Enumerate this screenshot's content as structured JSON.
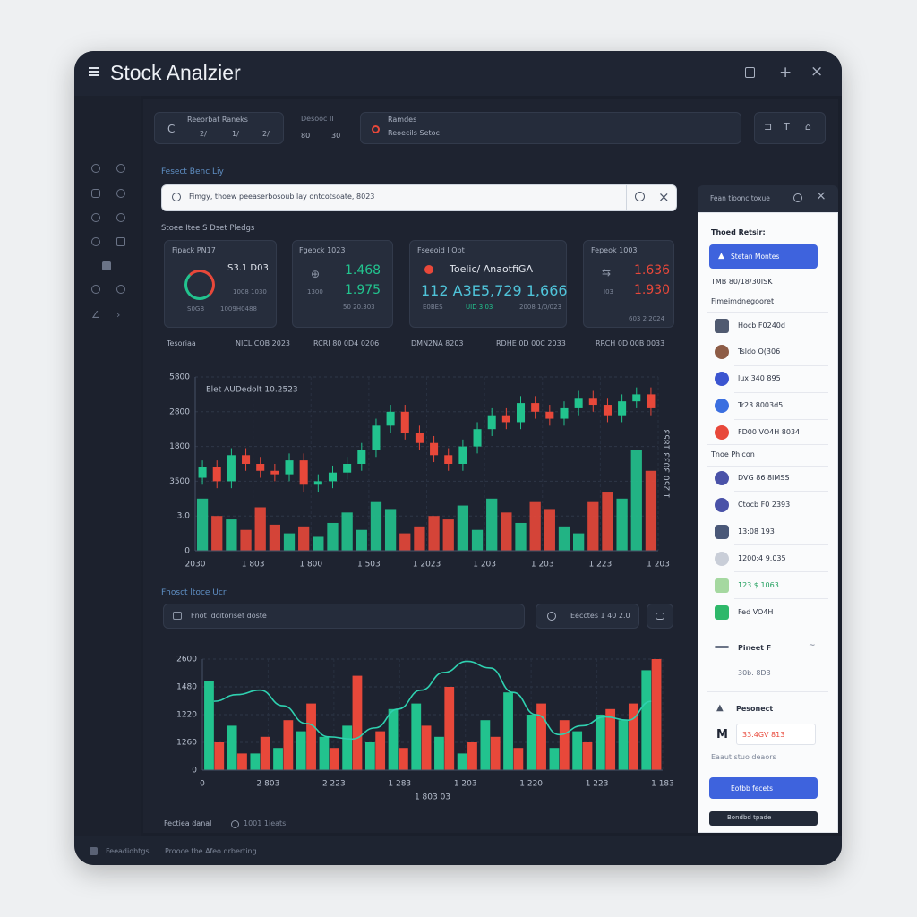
{
  "window": {
    "title": "Stock Analzier"
  },
  "toolbar": {
    "range": {
      "label": "Reeorbat Raneks",
      "parts": [
        "2/",
        "1/",
        "2/"
      ]
    },
    "period": {
      "label": "Desooc II",
      "parts": [
        "80",
        "30"
      ]
    },
    "source": {
      "label": "Ramdes",
      "value": "Reoecils Setoc"
    }
  },
  "section_label": "Fesect Benc Liy",
  "search": {
    "placeholder": "Fimgy, thoew peeaserbosoub lay ontcotsoate, 8023"
  },
  "stats_heading": "Stoee Itee S Dset Pledgs",
  "cards": [
    {
      "title": "Fipack PN17",
      "value": "S3.1 D03",
      "sub": "1008 1030",
      "foot_left": "S0GB",
      "foot_right": "1009H0488"
    },
    {
      "title": "Fgeock 1023",
      "value_a": "1.468",
      "value_b": "1.975",
      "sub": "1300",
      "foot_right": "50 20.303"
    },
    {
      "title": "Fseeoid I Obt",
      "value": "Toelic/ AnaotfiGA",
      "big": "112 A3E5,729 1,666",
      "foot_left": "E0BES",
      "foot_mid": "UID 3.03",
      "foot_right": "2008 1/0/023"
    },
    {
      "title": "Fepeok 1003",
      "value_a": "1.636",
      "value_b": "1.930",
      "sub": "I03",
      "foot_right": "603 2 2024"
    }
  ],
  "legend_row": [
    "Tesoriaa",
    "NICLICOB 2023",
    "RCRI 80 0D4 0206",
    "DMN2NA 8203",
    "RDHE 0D 00C 2033",
    "RRCH 0D 00B 0033"
  ],
  "chart_data": [
    {
      "type": "candlestick",
      "annotation": "Elet AUDedolt 10.2523",
      "y2label": "1 250 3033 1853",
      "ylim": [
        0,
        100
      ],
      "yticks": [
        {
          "value": 100,
          "label": "5800"
        },
        {
          "value": 80,
          "label": "2800"
        },
        {
          "value": 60,
          "label": "1800"
        },
        {
          "value": 40,
          "label": "3500"
        },
        {
          "value": 20,
          "label": "3.0"
        },
        0
      ],
      "x_labels": [
        "2030",
        "1 803",
        "1 800",
        "1 503",
        "1 2023",
        "1 203",
        "1 203",
        "1 223",
        "1 203"
      ],
      "up_color": "#22c38e",
      "down_color": "#e8483a",
      "open": [
        42,
        48,
        40,
        55,
        50,
        46,
        44,
        52,
        38,
        40,
        45,
        50,
        58,
        72,
        80,
        68,
        62,
        55,
        50,
        60,
        70,
        78,
        74,
        85,
        80,
        76,
        82,
        88,
        84,
        78,
        86,
        90
      ],
      "close": [
        48,
        40,
        55,
        50,
        46,
        44,
        52,
        38,
        40,
        45,
        50,
        58,
        72,
        80,
        68,
        62,
        55,
        50,
        60,
        70,
        78,
        74,
        85,
        80,
        76,
        82,
        88,
        84,
        78,
        86,
        90,
        82
      ],
      "high": [
        52,
        52,
        59,
        59,
        54,
        50,
        56,
        56,
        44,
        49,
        54,
        62,
        76,
        84,
        84,
        72,
        66,
        59,
        64,
        74,
        82,
        82,
        89,
        89,
        84,
        86,
        92,
        92,
        88,
        90,
        94,
        94
      ],
      "low": [
        38,
        36,
        36,
        46,
        42,
        40,
        40,
        34,
        34,
        36,
        41,
        46,
        54,
        68,
        64,
        58,
        51,
        46,
        46,
        56,
        66,
        70,
        70,
        76,
        72,
        72,
        78,
        80,
        74,
        74,
        82,
        78
      ],
      "volume": [
        30,
        20,
        18,
        12,
        25,
        15,
        10,
        14,
        8,
        16,
        22,
        12,
        28,
        24,
        10,
        14,
        20,
        18,
        26,
        12,
        30,
        22,
        16,
        28,
        24,
        14,
        10,
        28,
        34,
        30,
        58,
        46
      ]
    },
    {
      "type": "bar_line",
      "xlabel": "1 803 03",
      "ylim": [
        0,
        100
      ],
      "yticks": [
        {
          "value": 100,
          "label": "2600"
        },
        {
          "value": 75,
          "label": "1480"
        },
        {
          "value": 50,
          "label": "1220"
        },
        {
          "value": 25,
          "label": "1260"
        },
        0
      ],
      "x_labels": [
        "0",
        "2 803",
        "2 223",
        "1 283",
        "1 203",
        "1 220",
        "1 223",
        "1 183"
      ],
      "series": [
        {
          "color": "#22c38e",
          "values": [
            80,
            40,
            15,
            20,
            35,
            30,
            40,
            25,
            55,
            60,
            30,
            15,
            45,
            70,
            50,
            20,
            35,
            50,
            45,
            90
          ]
        },
        {
          "color": "#e8483a",
          "values": [
            25,
            15,
            30,
            45,
            60,
            20,
            85,
            35,
            20,
            40,
            75,
            25,
            30,
            20,
            60,
            45,
            25,
            55,
            60,
            100
          ]
        }
      ],
      "line": {
        "color": "#2fd1b0",
        "values": [
          62,
          68,
          72,
          58,
          42,
          30,
          28,
          38,
          55,
          72,
          88,
          98,
          92,
          70,
          50,
          32,
          40,
          48,
          45,
          62
        ]
      }
    }
  ],
  "section2": {
    "label": "Fhosct ltoce Ucr",
    "filter": "Fnot Idcitoriset doste",
    "search": "Eecctes 1 40 2.0",
    "footer_left": "Fectiea danal",
    "footer_right": "1001 1ieats"
  },
  "status_bar": {
    "left": "Feeadiohtgs",
    "right": "Prooce tbe Afeo drberting"
  },
  "panel": {
    "header": "Fean tioonc toxue",
    "heading": "Thoed Retsir:",
    "primary_button": "Stetan Montes",
    "meta": "TMB 80/18/30ISK",
    "group1": "Fimeimdnegooret",
    "items1": [
      "Hocb F0240d",
      "Tsldo O(306",
      "lux 340 895",
      "Tr23 8003d5",
      "FD00 VO4H 8034"
    ],
    "group2": "Tnoe Phicon",
    "items2": [
      "DVG 86 8IMSS",
      "Ctocb F0 2393",
      "13:08 193",
      "1200:4 9.035",
      "123 $ 1063",
      "Fed VO4H"
    ],
    "pinned": "Pineet F",
    "pinned_sub": "30b. 8D3",
    "section": "Pesonect",
    "amount": "33.4GV 813",
    "note": "Eaaut stuo deaors",
    "action_button": "Eotbb fecets",
    "footer_button": "Bondbd tpade"
  }
}
